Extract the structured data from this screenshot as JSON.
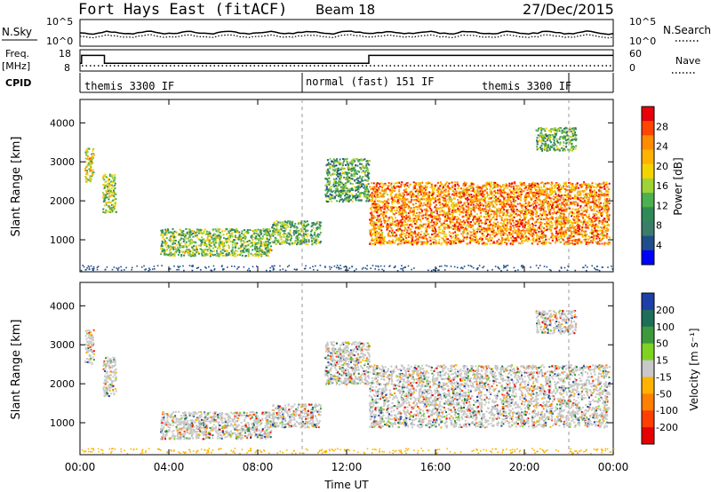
{
  "header": {
    "station": "Fort Hays East (fitACF)",
    "beam": "Beam 18",
    "date": "27/Dec/2015"
  },
  "strip_nsky": {
    "left_label": "N.Sky",
    "left_ticks": [
      "10^5",
      "10^0"
    ],
    "right_ticks": [
      "10^5",
      "10^0"
    ],
    "right_label": "N.Search"
  },
  "strip_freq": {
    "left_label_line1": "Freq.",
    "left_label_line2": "[MHz]",
    "left_ticks": [
      "18",
      "8"
    ],
    "right_ticks": [
      "60",
      "0"
    ],
    "right_label": "Nave",
    "freq_steps": [
      {
        "t_start": 0.0,
        "t_end": 0.07,
        "value": 12.0
      },
      {
        "t_start": 0.07,
        "t_end": 1.1,
        "value": 16.0
      },
      {
        "t_start": 1.1,
        "t_end": 13.0,
        "value": 12.0
      },
      {
        "t_start": 13.0,
        "t_end": 24.0,
        "value": 16.0
      }
    ]
  },
  "cpid": {
    "label": "CPID",
    "segments": [
      {
        "t_start": 0.0,
        "t_end": 10.0,
        "name": "themis 3300 IF"
      },
      {
        "t_start": 10.0,
        "t_end": 22.0,
        "name": "normal (fast) 151 IF"
      },
      {
        "t_start": 22.0,
        "t_end": 24.0,
        "name": "themis 3300 IF"
      }
    ]
  },
  "x_axis": {
    "label": "Time UT",
    "tick_labels": [
      "00:00",
      "04:00",
      "08:00",
      "12:00",
      "16:00",
      "20:00",
      "00:00"
    ],
    "range_hours": [
      0,
      24
    ]
  },
  "chart_data": [
    {
      "type": "heatmap",
      "panel": "power",
      "ylabel": "Slant Range [km]",
      "yticks": [
        1000,
        2000,
        3000,
        4000
      ],
      "ylim": [
        180,
        4600
      ],
      "xlim_hours": [
        0,
        24
      ],
      "colorbar": {
        "label": "Power [dB]",
        "ticks": [
          "28",
          "24",
          "20",
          "16",
          "12",
          "8",
          "4"
        ],
        "colors": [
          "#e8000b",
          "#ff4500",
          "#ff8c00",
          "#ffb300",
          "#f4d400",
          "#9fd236",
          "#4caf50",
          "#2e8b57",
          "#3a7d6b",
          "#1f4e8c",
          "#0000ff"
        ]
      },
      "scatter_regions": [
        {
          "t_start": 0.2,
          "t_end": 0.6,
          "r_low": 2500,
          "r_high": 3400,
          "level": 0.6
        },
        {
          "t_start": 1.0,
          "t_end": 1.6,
          "r_low": 1700,
          "r_high": 2700,
          "level": 0.5
        },
        {
          "t_start": 3.6,
          "t_end": 8.6,
          "r_low": 600,
          "r_high": 1300,
          "level": 0.45
        },
        {
          "t_start": 8.6,
          "t_end": 10.8,
          "r_low": 900,
          "r_high": 1500,
          "level": 0.4
        },
        {
          "t_start": 11.0,
          "t_end": 13.0,
          "r_low": 2000,
          "r_high": 3100,
          "level": 0.35
        },
        {
          "t_start": 13.0,
          "t_end": 23.8,
          "r_low": 900,
          "r_high": 2500,
          "level": 0.75
        },
        {
          "t_start": 20.5,
          "t_end": 22.3,
          "r_low": 3300,
          "r_high": 3900,
          "level": 0.4
        }
      ]
    },
    {
      "type": "heatmap",
      "panel": "velocity",
      "ylabel": "Slant Range [km]",
      "yticks": [
        1000,
        2000,
        3000,
        4000
      ],
      "ylim": [
        180,
        4600
      ],
      "xlim_hours": [
        0,
        24
      ],
      "colorbar": {
        "label": "Velocity [m s⁻¹]",
        "ticks": [
          "200",
          "100",
          "50",
          "15",
          "-15",
          "-50",
          "-100",
          "-200"
        ],
        "colors": [
          "#1f3fa8",
          "#1f6e5a",
          "#3c9a3c",
          "#7ed321",
          "#c8c8c8",
          "#ffb300",
          "#ff7f00",
          "#ff3f00",
          "#e60000"
        ]
      },
      "scatter_regions": [
        {
          "t_start": 0.2,
          "t_end": 0.6,
          "r_low": 2500,
          "r_high": 3400,
          "level": 0.5
        },
        {
          "t_start": 1.0,
          "t_end": 1.6,
          "r_low": 1700,
          "r_high": 2700,
          "level": 0.5
        },
        {
          "t_start": 3.6,
          "t_end": 8.6,
          "r_low": 600,
          "r_high": 1300,
          "level": 0.7
        },
        {
          "t_start": 8.6,
          "t_end": 10.8,
          "r_low": 900,
          "r_high": 1500,
          "level": 0.6
        },
        {
          "t_start": 11.0,
          "t_end": 13.0,
          "r_low": 2000,
          "r_high": 3100,
          "level": 0.5
        },
        {
          "t_start": 13.0,
          "t_end": 23.8,
          "r_low": 900,
          "r_high": 2500,
          "level": 0.5
        },
        {
          "t_start": 20.5,
          "t_end": 22.3,
          "r_low": 3300,
          "r_high": 3900,
          "level": 0.4
        }
      ]
    }
  ]
}
